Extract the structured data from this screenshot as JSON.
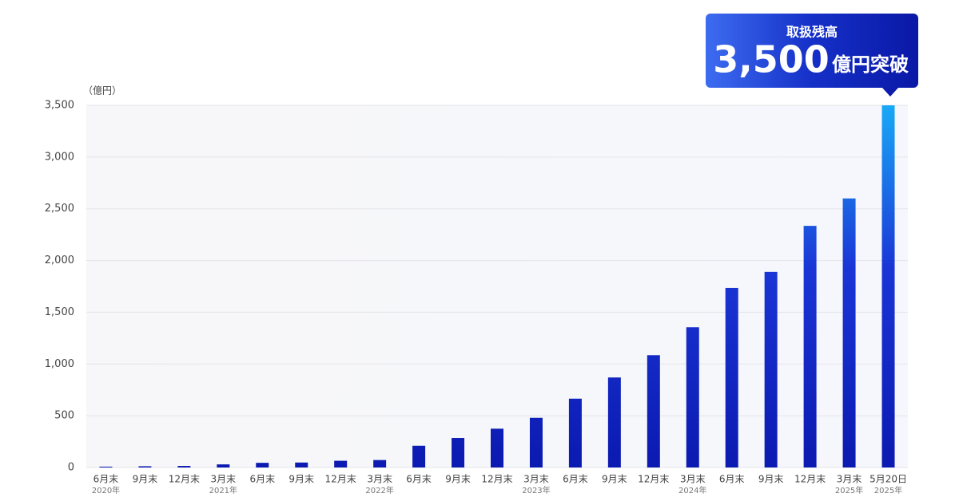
{
  "chart_data": {
    "type": "bar",
    "unit_label": "（億円）",
    "callout": {
      "title": "取扱残高",
      "value": "3,500",
      "suffix": "億円突破"
    },
    "categories": [
      "6月末",
      "9月末",
      "12月末",
      "3月末",
      "6月末",
      "9月末",
      "12月末",
      "3月末",
      "6月末",
      "9月末",
      "12月末",
      "3月末",
      "6月末",
      "9月末",
      "12月末",
      "3月末",
      "6月末",
      "9月末",
      "12月末",
      "3月末",
      "5月20日"
    ],
    "year_labels": [
      "2020年",
      null,
      null,
      "2021年",
      null,
      null,
      null,
      "2022年",
      null,
      null,
      null,
      "2023年",
      null,
      null,
      null,
      "2024年",
      null,
      null,
      null,
      "2025年",
      "2025年"
    ],
    "values": [
      8,
      12,
      15,
      30,
      45,
      48,
      65,
      72,
      210,
      285,
      375,
      480,
      665,
      870,
      1085,
      1355,
      1735,
      1890,
      2335,
      2600,
      3500
    ],
    "color": "#0b1ab0",
    "highlight_color": "#19a9f7",
    "ylim": [
      0,
      3500
    ],
    "yticks": [
      0,
      500,
      {
        "value": 1000,
        "label": "1,000"
      },
      {
        "value": 1500,
        "label": "1,500"
      },
      {
        "value": 2000,
        "label": "2,000"
      },
      {
        "value": 2500,
        "label": "2,500"
      },
      {
        "value": 3000,
        "label": "3,000"
      },
      {
        "value": 3500,
        "label": "3,500"
      }
    ],
    "grid": true
  }
}
